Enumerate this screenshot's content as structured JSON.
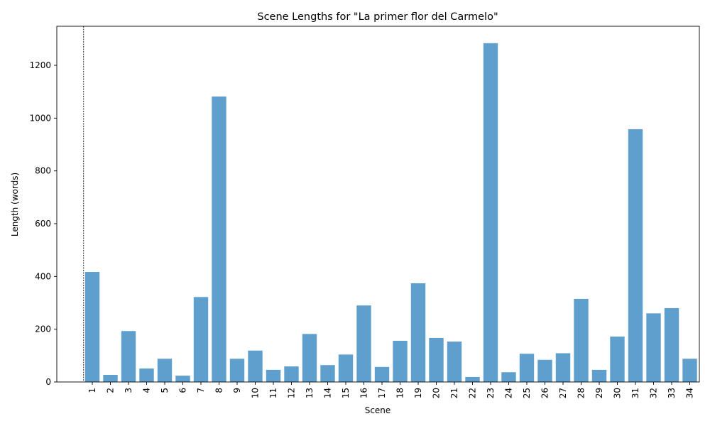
{
  "chart_data": {
    "type": "bar",
    "title": "Scene Lengths for \"La primer flor del Carmelo\"",
    "xlabel": "Scene",
    "ylabel": "Length (words)",
    "categories": [
      "1",
      "2",
      "3",
      "4",
      "5",
      "6",
      "7",
      "8",
      "9",
      "10",
      "11",
      "12",
      "13",
      "14",
      "15",
      "16",
      "17",
      "18",
      "19",
      "20",
      "21",
      "22",
      "23",
      "24",
      "25",
      "26",
      "27",
      "28",
      "29",
      "30",
      "31",
      "32",
      "33",
      "34"
    ],
    "values": [
      417,
      27,
      193,
      51,
      88,
      24,
      322,
      1082,
      88,
      119,
      46,
      59,
      182,
      64,
      104,
      290,
      57,
      156,
      374,
      167,
      153,
      19,
      1284,
      37,
      107,
      84,
      109,
      315,
      46,
      172,
      958,
      260,
      280,
      88
    ],
    "yticks": [
      0,
      200,
      400,
      600,
      800,
      1000,
      1200
    ],
    "ylim": [
      0,
      1348
    ],
    "bar_color": "#5f9fcd",
    "grid": false,
    "vertical_marker_before_category": "1"
  }
}
